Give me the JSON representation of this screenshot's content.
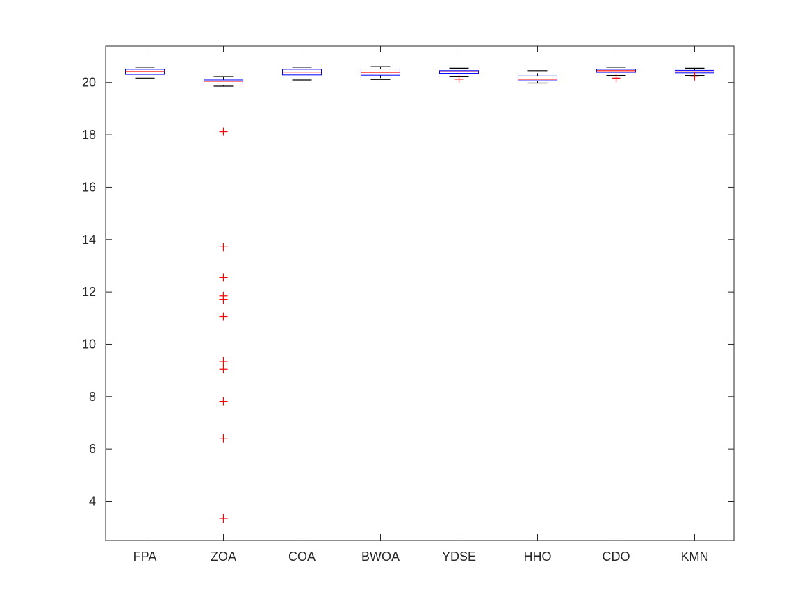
{
  "chart_data": {
    "type": "box",
    "categories": [
      "FPA",
      "ZOA",
      "COA",
      "BWOA",
      "YDSE",
      "HHO",
      "CDO",
      "KMN"
    ],
    "ylim": [
      2.5,
      21.4
    ],
    "yticks": [
      4,
      6,
      8,
      10,
      12,
      14,
      16,
      18,
      20
    ],
    "grid": false,
    "colors": {
      "box": "#0000ff",
      "median": "#ff0000",
      "whisker": "#000000",
      "outlier": "#ff0000",
      "axis": "#262626"
    },
    "boxes": [
      {
        "category": "FPA",
        "whisker_low": 20.17,
        "q1": 20.31,
        "median": 20.42,
        "q3": 20.5,
        "whisker_high": 20.58,
        "outliers": []
      },
      {
        "category": "ZOA",
        "whisker_low": 19.86,
        "q1": 19.9,
        "median": 20.05,
        "q3": 20.1,
        "whisker_high": 20.23,
        "outliers": [
          18.12,
          13.72,
          12.55,
          11.85,
          11.7,
          11.06,
          9.35,
          9.05,
          7.82,
          6.41,
          3.35
        ]
      },
      {
        "category": "COA",
        "whisker_low": 20.1,
        "q1": 20.29,
        "median": 20.4,
        "q3": 20.5,
        "whisker_high": 20.58,
        "outliers": []
      },
      {
        "category": "BWOA",
        "whisker_low": 20.12,
        "q1": 20.28,
        "median": 20.39,
        "q3": 20.51,
        "whisker_high": 20.6,
        "outliers": []
      },
      {
        "category": "YDSE",
        "whisker_low": 20.22,
        "q1": 20.35,
        "median": 20.41,
        "q3": 20.45,
        "whisker_high": 20.54,
        "outliers": [
          20.13
        ]
      },
      {
        "category": "HHO",
        "whisker_low": 19.98,
        "q1": 20.07,
        "median": 20.13,
        "q3": 20.25,
        "whisker_high": 20.45,
        "outliers": []
      },
      {
        "category": "CDO",
        "whisker_low": 20.27,
        "q1": 20.39,
        "median": 20.45,
        "q3": 20.5,
        "whisker_high": 20.58,
        "outliers": [
          20.17
        ]
      },
      {
        "category": "KMN",
        "whisker_low": 20.27,
        "q1": 20.37,
        "median": 20.41,
        "q3": 20.46,
        "whisker_high": 20.54,
        "outliers": [
          20.24
        ]
      }
    ]
  }
}
